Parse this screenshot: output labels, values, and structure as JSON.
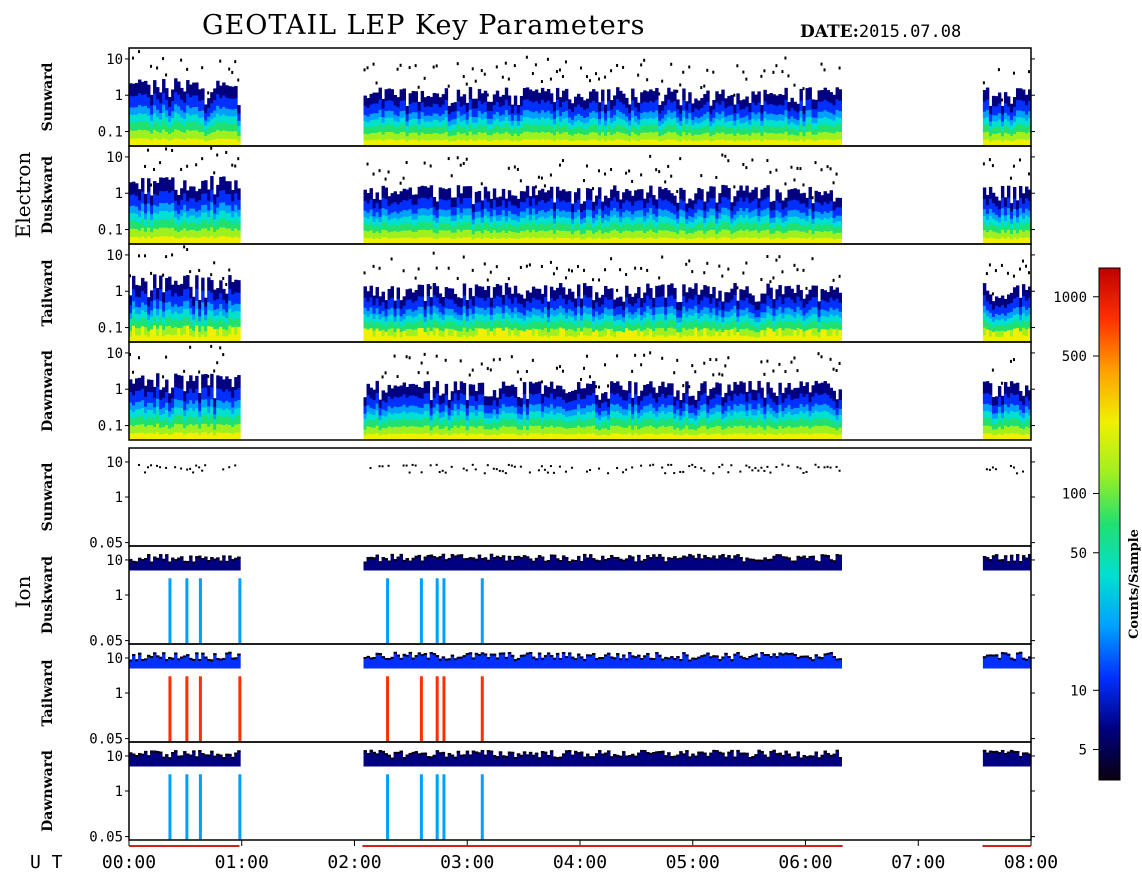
{
  "title": "GEOTAIL LEP Key Parameters",
  "date_label": "DATE:",
  "date_value": "2015.07.08",
  "x_axis": {
    "prefix": "U T",
    "ticks": [
      "00:00",
      "01:00",
      "02:00",
      "03:00",
      "04:00",
      "05:00",
      "06:00",
      "07:00",
      "08:00"
    ]
  },
  "groups": [
    {
      "name": "Electron",
      "panels": [
        "Sunward",
        "Duskward",
        "Tailward",
        "Dawnward"
      ]
    },
    {
      "name": "Ion",
      "panels": [
        "Sunward",
        "Duskward",
        "Tailward",
        "Dawnward"
      ]
    }
  ],
  "colors": {
    "colormap": [
      "#0a0010",
      "#000080",
      "#0030ff",
      "#00a0ff",
      "#00e0d0",
      "#20e070",
      "#a0f020",
      "#f0f000",
      "#ffa000",
      "#ff3000",
      "#c00000"
    ],
    "data_gap_marker": "#d02020"
  },
  "chart_data": {
    "type": "heatmap",
    "x_unit": "hours UT",
    "x_range": [
      0,
      8
    ],
    "data_intervals_hours": [
      [
        0.0,
        0.98
      ],
      [
        2.07,
        6.33
      ],
      [
        7.57,
        8.0
      ]
    ],
    "panels": [
      {
        "group": "Electron",
        "label": "Sunward",
        "y_ticks": [
          "10",
          "1",
          "0.1"
        ],
        "y_scale": "log",
        "y_range": [
          0.04,
          20
        ]
      },
      {
        "group": "Electron",
        "label": "Duskward",
        "y_ticks": [
          "10",
          "1",
          "0.1"
        ],
        "y_scale": "log",
        "y_range": [
          0.04,
          20
        ]
      },
      {
        "group": "Electron",
        "label": "Tailward",
        "y_ticks": [
          "10",
          "1",
          "0.1"
        ],
        "y_scale": "log",
        "y_range": [
          0.04,
          20
        ]
      },
      {
        "group": "Electron",
        "label": "Dawnward",
        "y_ticks": [
          "10",
          "1",
          "0.1"
        ],
        "y_scale": "log",
        "y_range": [
          0.04,
          20
        ]
      },
      {
        "group": "Ion",
        "label": "Sunward",
        "y_ticks": [
          "10",
          "1",
          "0.05"
        ],
        "y_scale": "log",
        "y_range": [
          0.04,
          25
        ]
      },
      {
        "group": "Ion",
        "label": "Duskward",
        "y_ticks": [
          "10",
          "1",
          "0.05"
        ],
        "y_scale": "log",
        "y_range": [
          0.04,
          25
        ]
      },
      {
        "group": "Ion",
        "label": "Tailward",
        "y_ticks": [
          "10",
          "1",
          "0.05"
        ],
        "y_scale": "log",
        "y_range": [
          0.04,
          25
        ]
      },
      {
        "group": "Ion",
        "label": "Dawnward",
        "y_ticks": [
          "10",
          "1",
          "0.05"
        ],
        "y_scale": "log",
        "y_range": [
          0.04,
          25
        ]
      }
    ],
    "colorbar": {
      "label": "Counts/Sample",
      "scale": "log",
      "range": [
        3.5,
        1400
      ],
      "ticks": [
        "5",
        "10",
        "50",
        "100",
        "500",
        "1000"
      ]
    }
  }
}
